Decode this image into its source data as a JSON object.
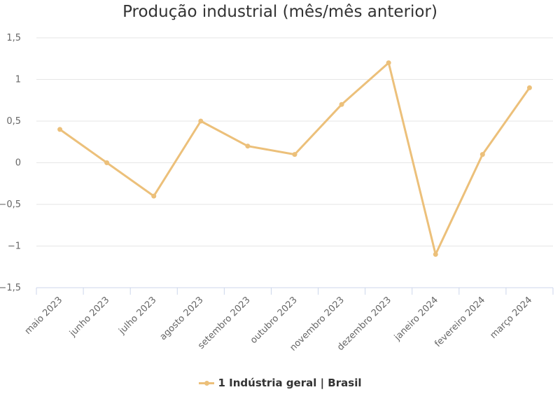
{
  "chart_data": {
    "type": "line",
    "title": "Produção industrial (mês/mês anterior)",
    "categories": [
      "maio 2023",
      "junho 2023",
      "julho 2023",
      "agosto 2023",
      "setembro 2023",
      "outubro 2023",
      "novembro 2023",
      "dezembro 2023",
      "janeiro 2024",
      "fevereiro 2024",
      "março 2024"
    ],
    "series": [
      {
        "name": "1 Indústria geral | Brasil",
        "color": "#ecc07a",
        "values": [
          0.4,
          0.0,
          -0.4,
          0.5,
          0.2,
          0.1,
          0.7,
          1.2,
          -1.1,
          0.1,
          0.9
        ]
      }
    ],
    "ylim": [
      -1.5,
      1.5
    ],
    "yticks": [
      1.5,
      1,
      0.5,
      0,
      -0.5,
      -1,
      -1.5
    ],
    "ytick_labels": [
      "1,5",
      "1",
      "0,5",
      "0",
      "−0,5",
      "−1",
      "−1,5"
    ],
    "grid": true,
    "legend": "bottom-center"
  }
}
